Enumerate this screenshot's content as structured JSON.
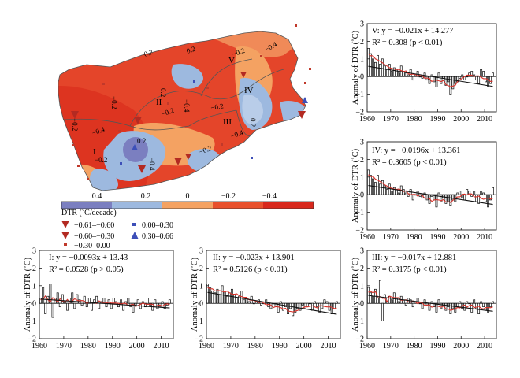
{
  "map": {
    "colorbar_ticks": [
      "0.4",
      "0.2",
      "0",
      "−0.2",
      "−0.4"
    ],
    "colorbar_colors": [
      "#7b7fc0",
      "#9db9df",
      "#f4a262",
      "#e8502c",
      "#d8281c"
    ],
    "unit_label": "DTR (˚C/decade)",
    "legend_items": [
      {
        "symbol": "down-triangle-large",
        "color": "#b32a22",
        "label": "−0.61–−0.60"
      },
      {
        "symbol": "down-triangle",
        "color": "#b32a22",
        "label": "−0.60–−0.30"
      },
      {
        "symbol": "square-small",
        "color": "#c0392b",
        "label": "−0.30–0.00"
      },
      {
        "symbol": "square-small",
        "color": "#3d4fb8",
        "label": "0.00–0.30"
      },
      {
        "symbol": "up-triangle",
        "color": "#3d4fb8",
        "label": "0.30–0.66"
      }
    ],
    "region_labels": [
      "I",
      "II",
      "III",
      "IV",
      "V"
    ],
    "contour_labels": [
      "0.2",
      "0.2",
      "0.2",
      "−0.2",
      "−0.4",
      "−0.2",
      "−0.2",
      "−0.4",
      "−0.2",
      "−0.2",
      "−0.4",
      "−0.2",
      "0.2",
      "−0.4",
      "−0.2",
      "0.2",
      "−0.4"
    ]
  },
  "chart_data": [
    {
      "type": "bar",
      "region": "V",
      "equation_label": "V: y = −0.021x + 14.277",
      "r2_label": "R² = 0.308 (p < 0.01)",
      "ylabel": "Anomaly of DTR (˚C)",
      "x": [
        1960,
        1961,
        1962,
        1963,
        1964,
        1965,
        1966,
        1967,
        1968,
        1969,
        1970,
        1971,
        1972,
        1973,
        1974,
        1975,
        1976,
        1977,
        1978,
        1979,
        1980,
        1981,
        1982,
        1983,
        1984,
        1985,
        1986,
        1987,
        1988,
        1989,
        1990,
        1991,
        1992,
        1993,
        1994,
        1995,
        1996,
        1997,
        1998,
        1999,
        2000,
        2001,
        2002,
        2003,
        2004,
        2005,
        2006,
        2007,
        2008,
        2009,
        2010,
        2011,
        2012,
        2013
      ],
      "values": [
        1.6,
        1.3,
        1.0,
        0.8,
        1.2,
        0.7,
        1.0,
        0.6,
        0.4,
        0.7,
        0.3,
        0.5,
        0.4,
        0.2,
        0.6,
        0.3,
        0.2,
        0.1,
        0.4,
        -0.2,
        0.1,
        0.3,
        0.0,
        -0.1,
        0.2,
        -0.2,
        -0.4,
        0.1,
        -0.3,
        -0.6,
        0.2,
        -0.4,
        -0.1,
        -0.5,
        -0.3,
        -1.0,
        -0.7,
        -0.4,
        -0.3,
        -0.1,
        0.1,
        -0.2,
        0.0,
        0.2,
        0.3,
        0.1,
        -0.2,
        -0.4,
        0.4,
        0.3,
        -0.3,
        -0.6,
        -0.4,
        0.2
      ],
      "trend": [
        0.58,
        -0.56
      ],
      "xlim": [
        1960,
        2015
      ],
      "ylim": [
        -2,
        3
      ],
      "xticks": [
        "1960",
        "1970",
        "1980",
        "1990",
        "2000",
        "2010"
      ],
      "yticks": [
        "−2",
        "−1",
        "0",
        "1",
        "2",
        "3"
      ]
    },
    {
      "type": "bar",
      "region": "IV",
      "equation_label": "IV: y = −0.0196x + 13.361",
      "r2_label": "R² = 0.3605 (p < 0.01)",
      "ylabel": "Anomaly of DTR (˚C)",
      "x": [
        1960,
        1961,
        1962,
        1963,
        1964,
        1965,
        1966,
        1967,
        1968,
        1969,
        1970,
        1971,
        1972,
        1973,
        1974,
        1975,
        1976,
        1977,
        1978,
        1979,
        1980,
        1981,
        1982,
        1983,
        1984,
        1985,
        1986,
        1987,
        1988,
        1989,
        1990,
        1991,
        1992,
        1993,
        1994,
        1995,
        1996,
        1997,
        1998,
        1999,
        2000,
        2001,
        2002,
        2003,
        2004,
        2005,
        2006,
        2007,
        2008,
        2009,
        2010,
        2011,
        2012,
        2013
      ],
      "values": [
        1.4,
        1.1,
        0.9,
        0.7,
        1.1,
        0.6,
        0.8,
        0.5,
        0.3,
        0.6,
        0.2,
        0.4,
        0.3,
        0.1,
        0.5,
        0.3,
        0.1,
        -0.1,
        0.3,
        -0.3,
        0.0,
        0.2,
        -0.1,
        -0.2,
        0.1,
        -0.3,
        -0.5,
        -0.1,
        -0.3,
        -0.7,
        0.1,
        -0.4,
        -0.2,
        -0.5,
        -0.4,
        -0.6,
        -0.3,
        -0.4,
        0.1,
        0.2,
        -0.2,
        -0.3,
        0.3,
        0.2,
        -0.1,
        0.2,
        -0.4,
        -0.5,
        0.2,
        0.1,
        -0.4,
        -0.7,
        -0.3,
        0.4
      ],
      "trend": [
        0.52,
        -0.55
      ],
      "xlim": [
        1960,
        2015
      ],
      "ylim": [
        -2,
        3
      ],
      "xticks": [
        "1960",
        "1970",
        "1980",
        "1990",
        "2000",
        "2010"
      ],
      "yticks": [
        "−2",
        "−1",
        "0",
        "1",
        "2",
        "3"
      ]
    },
    {
      "type": "bar",
      "region": "I",
      "equation_label": "I: y = −0.0093x + 13.43",
      "r2_label": "R² = 0.0528 (p > 0.05)",
      "ylabel": "Anomaly of DTR (˚C)",
      "x": [
        1960,
        1961,
        1962,
        1963,
        1964,
        1965,
        1966,
        1967,
        1968,
        1969,
        1970,
        1971,
        1972,
        1973,
        1974,
        1975,
        1976,
        1977,
        1978,
        1979,
        1980,
        1981,
        1982,
        1983,
        1984,
        1985,
        1986,
        1987,
        1988,
        1989,
        1990,
        1991,
        1992,
        1993,
        1994,
        1995,
        1996,
        1997,
        1998,
        1999,
        2000,
        2001,
        2002,
        2003,
        2004,
        2005,
        2006,
        2007,
        2008,
        2009,
        2010,
        2011,
        2012,
        2013
      ],
      "values": [
        0.3,
        0.9,
        -0.6,
        0.4,
        1.1,
        -0.8,
        0.3,
        0.6,
        -0.2,
        0.5,
        0.1,
        -0.4,
        0.3,
        0.6,
        -0.3,
        0.5,
        0.2,
        -0.1,
        0.4,
        -0.2,
        0.3,
        -0.4,
        0.2,
        0.4,
        -0.3,
        0.1,
        0.3,
        -0.2,
        0.2,
        -0.3,
        0.3,
        0.1,
        -0.2,
        0.2,
        -0.4,
        0.1,
        0.3,
        -0.2,
        -0.5,
        -0.1,
        0.2,
        -0.3,
        0.1,
        -0.2,
        0.3,
        -0.1,
        -0.4,
        0.2,
        -0.3,
        -0.2,
        0.1,
        -0.3,
        -0.1,
        0.2
      ],
      "trend": [
        0.24,
        -0.26
      ],
      "xlim": [
        1960,
        2015
      ],
      "ylim": [
        -2,
        3
      ],
      "xticks": [
        "1960",
        "1970",
        "1980",
        "1990",
        "2000",
        "2010"
      ],
      "yticks": [
        "−2",
        "−1",
        "0",
        "1",
        "2",
        "3"
      ]
    },
    {
      "type": "bar",
      "region": "II",
      "equation_label": "II: y = −0.023x + 13.901",
      "r2_label": "R² = 0.5126 (p < 0.01)",
      "ylabel": "Anomaly of DTR (˚C)",
      "x": [
        1960,
        1961,
        1962,
        1963,
        1964,
        1965,
        1966,
        1967,
        1968,
        1969,
        1970,
        1971,
        1972,
        1973,
        1974,
        1975,
        1976,
        1977,
        1978,
        1979,
        1980,
        1981,
        1982,
        1983,
        1984,
        1985,
        1986,
        1987,
        1988,
        1989,
        1990,
        1991,
        1992,
        1993,
        1994,
        1995,
        1996,
        1997,
        1998,
        1999,
        2000,
        2001,
        2002,
        2003,
        2004,
        2005,
        2006,
        2007,
        2008,
        2009,
        2010,
        2011,
        2012,
        2013
      ],
      "values": [
        1.1,
        0.9,
        0.7,
        0.6,
        0.8,
        0.5,
        1.0,
        0.7,
        0.4,
        0.6,
        0.8,
        0.5,
        0.3,
        0.4,
        0.7,
        0.2,
        0.3,
        0.1,
        0.4,
        0.0,
        0.1,
        0.2,
        -0.1,
        0.0,
        0.2,
        -0.2,
        -0.3,
        0.0,
        -0.2,
        -0.5,
        0.1,
        -0.4,
        -0.2,
        -0.6,
        -0.3,
        -0.7,
        -0.5,
        -0.3,
        -0.4,
        -0.1,
        -0.3,
        -0.2,
        0.0,
        -0.4,
        0.1,
        -0.2,
        -0.5,
        -0.3,
        0.2,
        0.1,
        -0.4,
        -0.6,
        -0.3,
        0.1
      ],
      "trend": [
        0.62,
        -0.62
      ],
      "xlim": [
        1960,
        2015
      ],
      "ylim": [
        -2,
        3
      ],
      "xticks": [
        "1960",
        "1970",
        "1980",
        "1990",
        "2000",
        "2010"
      ],
      "yticks": [
        "−2",
        "−1",
        "0",
        "1",
        "2",
        "3"
      ]
    },
    {
      "type": "bar",
      "region": "III",
      "equation_label": "III: y = −0.017x + 12.881",
      "r2_label": "R² = 0.3175 (p < 0.01)",
      "ylabel": "Anomaly of DTR (˚C)",
      "x": [
        1960,
        1961,
        1962,
        1963,
        1964,
        1965,
        1966,
        1967,
        1968,
        1969,
        1970,
        1971,
        1972,
        1973,
        1974,
        1975,
        1976,
        1977,
        1978,
        1979,
        1980,
        1981,
        1982,
        1983,
        1984,
        1985,
        1986,
        1987,
        1988,
        1989,
        1990,
        1991,
        1992,
        1993,
        1994,
        1995,
        1996,
        1997,
        1998,
        1999,
        2000,
        2001,
        2002,
        2003,
        2004,
        2005,
        2006,
        2007,
        2008,
        2009,
        2010,
        2011,
        2012,
        2013
      ],
      "values": [
        0.9,
        0.6,
        0.4,
        0.8,
        0.3,
        1.3,
        -1.0,
        0.5,
        0.3,
        0.4,
        0.2,
        0.6,
        0.3,
        0.1,
        0.4,
        0.2,
        -0.1,
        0.3,
        0.2,
        -0.2,
        0.1,
        0.3,
        0.0,
        -0.3,
        0.2,
        -0.1,
        -0.4,
        0.1,
        -0.2,
        -0.5,
        0.2,
        -0.3,
        -0.1,
        -0.4,
        -0.2,
        -0.6,
        -0.3,
        -0.5,
        -0.2,
        0.1,
        -0.3,
        -0.4,
        0.1,
        0.0,
        -0.5,
        0.2,
        -0.3,
        -0.6,
        0.1,
        -0.2,
        -0.4,
        -0.5,
        -0.2,
        0.1
      ],
      "trend": [
        0.45,
        -0.45
      ],
      "xlim": [
        1960,
        2015
      ],
      "ylim": [
        -2,
        3
      ],
      "xticks": [
        "1960",
        "1970",
        "1980",
        "1990",
        "2000",
        "2010"
      ],
      "yticks": [
        "−2",
        "−1",
        "0",
        "1",
        "2",
        "3"
      ]
    }
  ]
}
